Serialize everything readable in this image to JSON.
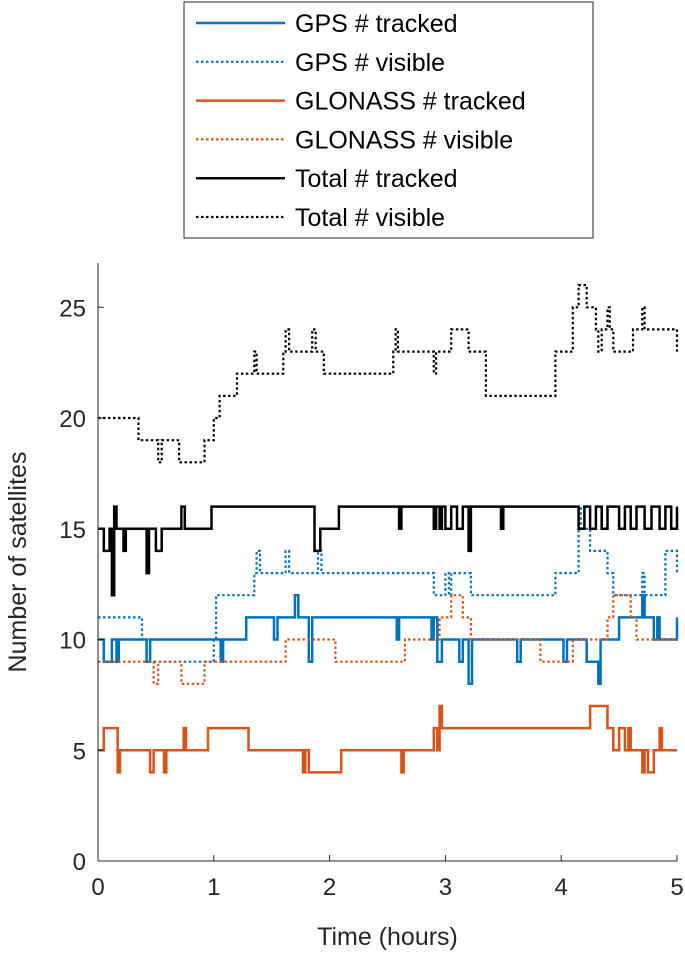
{
  "chart_data": {
    "type": "line",
    "title": "",
    "xlabel": "Time (hours)",
    "ylabel": "Number of satellites",
    "xlim": [
      0,
      5
    ],
    "ylim": [
      0,
      27
    ],
    "xticks": [
      0,
      1,
      2,
      3,
      4,
      5
    ],
    "yticks": [
      0,
      5,
      10,
      15,
      20,
      25
    ],
    "grid": false,
    "legend_position": "top-center-outside",
    "series": [
      {
        "name": "GPS # tracked",
        "color": "#0072BD",
        "dash": "solid",
        "points": [
          [
            0,
            10
          ],
          [
            0.05,
            9
          ],
          [
            0.12,
            10
          ],
          [
            0.16,
            9
          ],
          [
            0.18,
            10
          ],
          [
            0.42,
            9
          ],
          [
            0.45,
            10
          ],
          [
            1.05,
            10
          ],
          [
            1.06,
            9
          ],
          [
            1.08,
            10
          ],
          [
            1.28,
            11
          ],
          [
            1.5,
            11
          ],
          [
            1.52,
            10
          ],
          [
            1.55,
            11
          ],
          [
            1.7,
            12
          ],
          [
            1.73,
            11
          ],
          [
            1.82,
            9
          ],
          [
            1.85,
            11
          ],
          [
            2.55,
            11
          ],
          [
            2.58,
            10
          ],
          [
            2.6,
            11
          ],
          [
            2.85,
            11
          ],
          [
            2.88,
            10
          ],
          [
            2.9,
            11
          ],
          [
            2.93,
            9
          ],
          [
            2.97,
            10
          ],
          [
            3.1,
            10
          ],
          [
            3.12,
            9
          ],
          [
            3.15,
            10
          ],
          [
            3.2,
            8
          ],
          [
            3.23,
            10
          ],
          [
            3.6,
            10
          ],
          [
            3.62,
            9
          ],
          [
            3.65,
            10
          ],
          [
            4.0,
            10
          ],
          [
            4.02,
            9
          ],
          [
            4.05,
            10
          ],
          [
            4.2,
            10
          ],
          [
            4.22,
            9
          ],
          [
            4.3,
            9
          ],
          [
            4.32,
            8
          ],
          [
            4.34,
            10
          ],
          [
            4.5,
            11
          ],
          [
            4.7,
            12
          ],
          [
            4.72,
            11
          ],
          [
            4.8,
            10
          ],
          [
            4.83,
            11
          ],
          [
            4.85,
            10
          ],
          [
            5,
            11
          ]
        ]
      },
      {
        "name": "GPS # visible",
        "color": "#0072BD",
        "dash": "dotted",
        "points": [
          [
            0,
            11
          ],
          [
            0.35,
            11
          ],
          [
            0.38,
            10
          ],
          [
            0.45,
            9
          ],
          [
            1.0,
            10
          ],
          [
            1.02,
            12
          ],
          [
            1.35,
            13
          ],
          [
            1.37,
            14
          ],
          [
            1.4,
            13
          ],
          [
            1.6,
            13
          ],
          [
            1.62,
            14
          ],
          [
            1.65,
            13
          ],
          [
            1.9,
            14
          ],
          [
            1.93,
            13
          ],
          [
            2.7,
            13
          ],
          [
            2.9,
            12
          ],
          [
            3.0,
            13
          ],
          [
            3.03,
            12
          ],
          [
            3.05,
            13
          ],
          [
            3.2,
            13
          ],
          [
            3.22,
            12
          ],
          [
            3.5,
            12
          ],
          [
            3.9,
            12
          ],
          [
            3.95,
            13
          ],
          [
            4.15,
            15
          ],
          [
            4.17,
            16
          ],
          [
            4.2,
            15
          ],
          [
            4.25,
            14
          ],
          [
            4.4,
            13
          ],
          [
            4.45,
            12
          ],
          [
            4.65,
            12
          ],
          [
            4.7,
            13
          ],
          [
            4.72,
            12
          ],
          [
            4.9,
            14
          ],
          [
            5,
            13
          ]
        ]
      },
      {
        "name": "GLONASS # tracked",
        "color": "#D95319",
        "dash": "solid",
        "points": [
          [
            0,
            5
          ],
          [
            0.05,
            6
          ],
          [
            0.15,
            6
          ],
          [
            0.17,
            4
          ],
          [
            0.19,
            5
          ],
          [
            0.42,
            5
          ],
          [
            0.45,
            4
          ],
          [
            0.48,
            5
          ],
          [
            0.55,
            5
          ],
          [
            0.57,
            4
          ],
          [
            0.59,
            5
          ],
          [
            0.72,
            5
          ],
          [
            0.74,
            6
          ],
          [
            0.76,
            5
          ],
          [
            0.95,
            6
          ],
          [
            1.3,
            5
          ],
          [
            1.75,
            5
          ],
          [
            1.77,
            4
          ],
          [
            1.79,
            5
          ],
          [
            1.82,
            4
          ],
          [
            2.1,
            5
          ],
          [
            2.6,
            5
          ],
          [
            2.62,
            4
          ],
          [
            2.64,
            5
          ],
          [
            2.88,
            5
          ],
          [
            2.9,
            6
          ],
          [
            2.93,
            5
          ],
          [
            2.95,
            7
          ],
          [
            2.97,
            6
          ],
          [
            4.25,
            7
          ],
          [
            4.4,
            6
          ],
          [
            4.45,
            5
          ],
          [
            4.5,
            6
          ],
          [
            4.55,
            5
          ],
          [
            4.58,
            6
          ],
          [
            4.6,
            5
          ],
          [
            4.65,
            5
          ],
          [
            4.7,
            4
          ],
          [
            4.72,
            5
          ],
          [
            4.75,
            4
          ],
          [
            4.8,
            5
          ],
          [
            4.85,
            6
          ],
          [
            4.87,
            5
          ],
          [
            5,
            5
          ]
        ]
      },
      {
        "name": "GLONASS # visible",
        "color": "#D95319",
        "dash": "dotted",
        "points": [
          [
            0,
            9
          ],
          [
            0.45,
            9
          ],
          [
            0.48,
            8
          ],
          [
            0.52,
            9
          ],
          [
            0.7,
            9
          ],
          [
            0.72,
            8
          ],
          [
            0.92,
            9
          ],
          [
            1.6,
            9
          ],
          [
            1.62,
            10
          ],
          [
            2.0,
            10
          ],
          [
            2.05,
            9
          ],
          [
            2.6,
            9
          ],
          [
            2.65,
            10
          ],
          [
            2.9,
            10
          ],
          [
            2.95,
            11
          ],
          [
            3.05,
            12
          ],
          [
            3.15,
            11
          ],
          [
            3.22,
            10
          ],
          [
            3.8,
            10
          ],
          [
            3.82,
            9
          ],
          [
            4.05,
            9
          ],
          [
            4.1,
            10
          ],
          [
            4.35,
            10
          ],
          [
            4.4,
            11
          ],
          [
            4.45,
            12
          ],
          [
            4.6,
            11
          ],
          [
            4.65,
            10
          ],
          [
            4.9,
            10
          ],
          [
            5,
            10
          ]
        ]
      },
      {
        "name": "Total # tracked",
        "color": "#000000",
        "dash": "solid",
        "points": [
          [
            0,
            15
          ],
          [
            0.05,
            14
          ],
          [
            0.1,
            15
          ],
          [
            0.12,
            12
          ],
          [
            0.14,
            16
          ],
          [
            0.16,
            15
          ],
          [
            0.22,
            14
          ],
          [
            0.24,
            15
          ],
          [
            0.42,
            13
          ],
          [
            0.44,
            15
          ],
          [
            0.5,
            14
          ],
          [
            0.55,
            15
          ],
          [
            0.7,
            15
          ],
          [
            0.72,
            16
          ],
          [
            0.75,
            15
          ],
          [
            0.95,
            15
          ],
          [
            0.98,
            16
          ],
          [
            1.85,
            16
          ],
          [
            1.87,
            14
          ],
          [
            1.92,
            15
          ],
          [
            2.05,
            15
          ],
          [
            2.08,
            16
          ],
          [
            2.55,
            16
          ],
          [
            2.6,
            15
          ],
          [
            2.62,
            16
          ],
          [
            2.85,
            16
          ],
          [
            2.9,
            15
          ],
          [
            2.92,
            16
          ],
          [
            2.95,
            15
          ],
          [
            2.97,
            16
          ],
          [
            3.0,
            15
          ],
          [
            3.05,
            16
          ],
          [
            3.1,
            15
          ],
          [
            3.15,
            16
          ],
          [
            3.2,
            14
          ],
          [
            3.22,
            16
          ],
          [
            3.45,
            16
          ],
          [
            3.48,
            15
          ],
          [
            3.5,
            16
          ],
          [
            4.15,
            15
          ],
          [
            4.2,
            16
          ],
          [
            4.25,
            15
          ],
          [
            4.3,
            16
          ],
          [
            4.35,
            15
          ],
          [
            4.4,
            16
          ],
          [
            4.5,
            15
          ],
          [
            4.55,
            16
          ],
          [
            4.6,
            15
          ],
          [
            4.65,
            16
          ],
          [
            4.72,
            15
          ],
          [
            4.78,
            16
          ],
          [
            4.85,
            15
          ],
          [
            4.9,
            16
          ],
          [
            4.95,
            15
          ],
          [
            5,
            16
          ]
        ]
      },
      {
        "name": "Total # visible",
        "color": "#000000",
        "dash": "dotted",
        "points": [
          [
            0,
            20
          ],
          [
            0.3,
            20
          ],
          [
            0.35,
            19
          ],
          [
            0.5,
            19
          ],
          [
            0.52,
            18
          ],
          [
            0.55,
            19
          ],
          [
            0.7,
            18
          ],
          [
            0.92,
            19
          ],
          [
            1.0,
            20
          ],
          [
            1.05,
            21
          ],
          [
            1.2,
            22
          ],
          [
            1.35,
            23
          ],
          [
            1.37,
            22
          ],
          [
            1.6,
            23
          ],
          [
            1.62,
            24
          ],
          [
            1.65,
            23
          ],
          [
            1.85,
            24
          ],
          [
            1.88,
            23
          ],
          [
            1.95,
            22
          ],
          [
            2.1,
            22
          ],
          [
            2.55,
            23
          ],
          [
            2.57,
            24
          ],
          [
            2.59,
            23
          ],
          [
            2.9,
            22
          ],
          [
            2.92,
            23
          ],
          [
            3.05,
            24
          ],
          [
            3.2,
            23
          ],
          [
            3.35,
            21
          ],
          [
            3.7,
            21
          ],
          [
            3.9,
            21
          ],
          [
            3.95,
            23
          ],
          [
            4.0,
            23
          ],
          [
            4.1,
            25
          ],
          [
            4.15,
            26
          ],
          [
            4.22,
            25
          ],
          [
            4.3,
            24
          ],
          [
            4.32,
            23
          ],
          [
            4.35,
            24
          ],
          [
            4.4,
            25
          ],
          [
            4.42,
            24
          ],
          [
            4.45,
            23
          ],
          [
            4.6,
            23
          ],
          [
            4.62,
            24
          ],
          [
            4.7,
            25
          ],
          [
            4.72,
            24
          ],
          [
            4.95,
            24
          ],
          [
            5,
            23
          ]
        ]
      }
    ]
  }
}
